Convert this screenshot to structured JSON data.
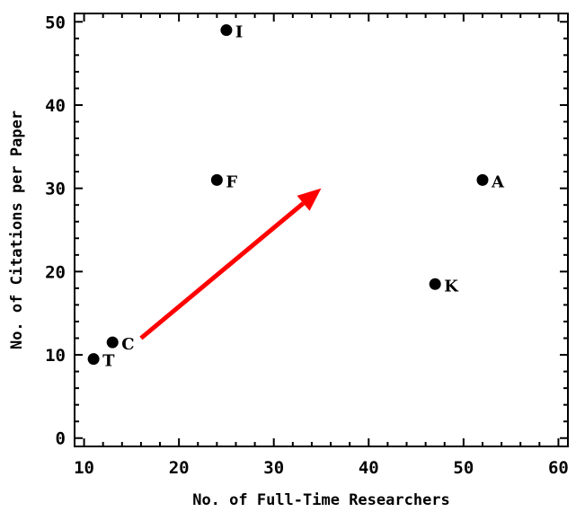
{
  "chart_data": {
    "type": "scatter",
    "title": "",
    "xlabel": "No. of Full-Time Researchers",
    "ylabel": "No. of Citations per Paper",
    "xlim": [
      9,
      61
    ],
    "ylim": [
      -1,
      51
    ],
    "x_ticks": [
      10,
      20,
      30,
      40,
      50,
      60
    ],
    "y_ticks": [
      0,
      10,
      20,
      30,
      40,
      50
    ],
    "x_tick_labels": [
      "10",
      "20",
      "30",
      "40",
      "50",
      "60"
    ],
    "y_tick_labels": [
      "0",
      "10",
      "20",
      "30",
      "40",
      "50"
    ],
    "grid": false,
    "points": [
      {
        "label": "I",
        "x": 25,
        "y": 49
      },
      {
        "label": "F",
        "x": 24,
        "y": 31
      },
      {
        "label": "A",
        "x": 52,
        "y": 31
      },
      {
        "label": "K",
        "x": 47,
        "y": 18.5
      },
      {
        "label": "C",
        "x": 13,
        "y": 11.5
      },
      {
        "label": "T",
        "x": 11,
        "y": 9.5
      }
    ],
    "annotations": [
      {
        "type": "arrow",
        "from": [
          16,
          12
        ],
        "to": [
          35,
          30
        ],
        "color": "#ff0000"
      }
    ],
    "marker_color": "#000000"
  }
}
